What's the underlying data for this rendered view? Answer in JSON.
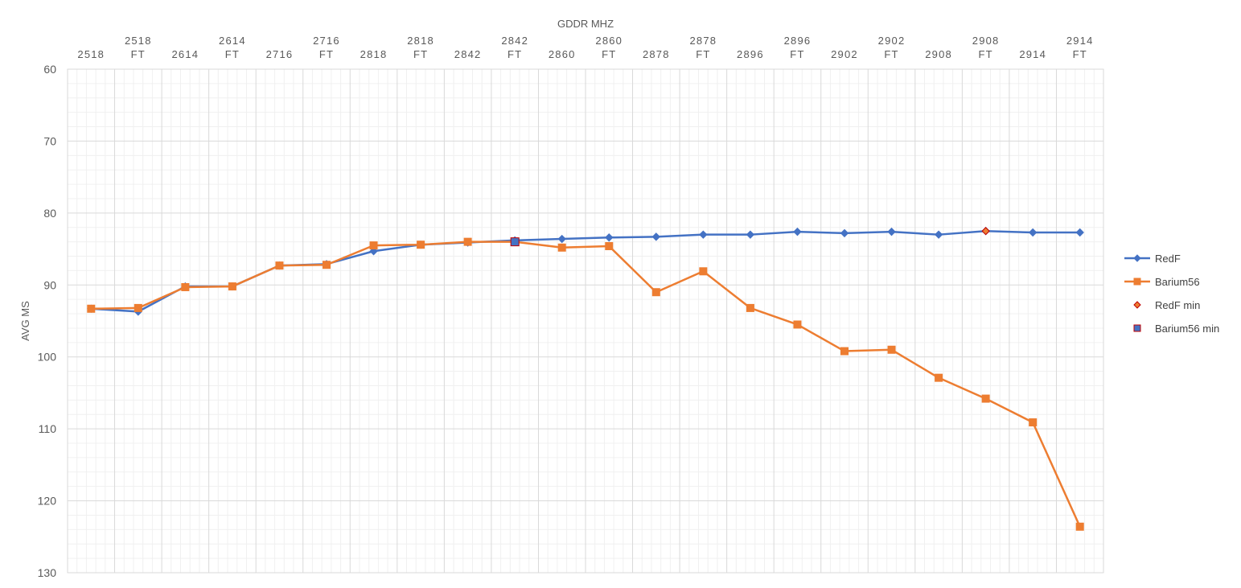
{
  "chart_data": {
    "type": "line",
    "title": "",
    "xlabel": "GDDR MHZ",
    "ylabel": "AVG MS",
    "x_axis_position": "top",
    "y_axis_reversed": true,
    "ylim": [
      60,
      130
    ],
    "yticks": [
      60,
      70,
      80,
      90,
      100,
      110,
      120,
      130
    ],
    "grid": true,
    "minor_grid": true,
    "legend_position": "right",
    "categories": [
      [
        "2518"
      ],
      [
        "2518",
        "FT"
      ],
      [
        "2614"
      ],
      [
        "2614",
        "FT"
      ],
      [
        "2716"
      ],
      [
        "2716",
        "FT"
      ],
      [
        "2818"
      ],
      [
        "2818",
        "FT"
      ],
      [
        "2842"
      ],
      [
        "2842",
        "FT"
      ],
      [
        "2860"
      ],
      [
        "2860",
        "FT"
      ],
      [
        "2878"
      ],
      [
        "2878",
        "FT"
      ],
      [
        "2896"
      ],
      [
        "2896",
        "FT"
      ],
      [
        "2902"
      ],
      [
        "2902",
        "FT"
      ],
      [
        "2908"
      ],
      [
        "2908",
        "FT"
      ],
      [
        "2914"
      ],
      [
        "2914",
        "FT"
      ]
    ],
    "series": [
      {
        "name": "RedF",
        "color": "#4472C4",
        "marker": "diamond",
        "values": [
          93.3,
          93.7,
          90.2,
          90.2,
          87.3,
          87.1,
          85.3,
          84.4,
          84.1,
          83.8,
          83.6,
          83.4,
          83.3,
          83.0,
          83.0,
          82.6,
          82.8,
          82.6,
          83.0,
          82.5,
          82.7,
          82.7
        ]
      },
      {
        "name": "Barium56",
        "color": "#ED7D31",
        "marker": "square",
        "values": [
          93.3,
          93.2,
          90.3,
          90.2,
          87.3,
          87.2,
          84.5,
          84.4,
          84.0,
          84.0,
          84.8,
          84.6,
          91.0,
          88.1,
          93.2,
          95.5,
          99.2,
          99.0,
          102.9,
          105.8,
          109.1,
          123.6
        ]
      }
    ],
    "minima": [
      {
        "name": "RedF min",
        "series": "RedF",
        "index": 19,
        "value": 82.5,
        "fill": "#ED7D31",
        "stroke": "#C00000",
        "marker": "diamond"
      },
      {
        "name": "Barium56 min",
        "series": "Barium56",
        "index": 9,
        "value": 84.0,
        "fill": "#4472C4",
        "stroke": "#C00000",
        "marker": "square"
      }
    ],
    "legend": [
      "RedF",
      "Barium56",
      "RedF min",
      "Barium56 min"
    ]
  }
}
